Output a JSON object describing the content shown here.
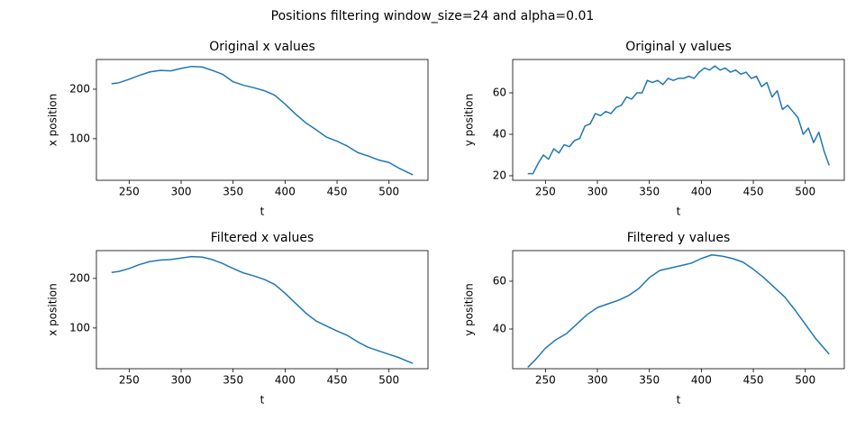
{
  "title": "Positions filtering window_size=24 and alpha=0.01",
  "chart_data": [
    {
      "type": "line",
      "title": "Original x values",
      "xlabel": "t",
      "ylabel": "x position",
      "x": [
        233,
        240,
        250,
        260,
        270,
        280,
        290,
        300,
        310,
        320,
        330,
        340,
        350,
        360,
        370,
        380,
        390,
        400,
        410,
        420,
        430,
        440,
        450,
        460,
        470,
        480,
        490,
        500,
        510,
        520,
        523
      ],
      "series": [
        {
          "color": "#1f77b4",
          "values": [
            211,
            213,
            220,
            228,
            235,
            238,
            237,
            242,
            246,
            245,
            238,
            230,
            215,
            208,
            203,
            197,
            188,
            170,
            150,
            132,
            118,
            103,
            95,
            85,
            72,
            65,
            57,
            52,
            40,
            30,
            27
          ]
        }
      ],
      "xlim": [
        218.5,
        537.5
      ],
      "ylim": [
        16,
        260
      ],
      "xticks": [
        250,
        300,
        350,
        400,
        450,
        500
      ],
      "yticks": [
        100,
        200
      ]
    },
    {
      "type": "line",
      "title": "Original y values",
      "xlabel": "t",
      "ylabel": "y position",
      "x": [
        233,
        238,
        243,
        248,
        253,
        258,
        263,
        268,
        273,
        278,
        283,
        288,
        293,
        298,
        303,
        308,
        313,
        318,
        323,
        328,
        333,
        338,
        343,
        348,
        353,
        358,
        363,
        368,
        373,
        378,
        383,
        388,
        393,
        398,
        403,
        408,
        413,
        418,
        423,
        428,
        433,
        438,
        443,
        448,
        453,
        458,
        463,
        468,
        473,
        478,
        483,
        488,
        493,
        498,
        503,
        508,
        513,
        518,
        523
      ],
      "series": [
        {
          "color": "#1f77b4",
          "values": [
            21,
            21,
            26,
            30,
            28,
            33,
            31,
            35,
            34,
            37,
            38,
            44,
            45,
            50,
            49,
            51,
            50,
            53,
            54,
            58,
            57,
            60,
            60,
            66,
            65,
            66,
            64,
            67,
            66,
            67,
            67,
            68,
            67,
            70,
            72,
            71,
            73,
            71,
            72,
            70,
            71,
            69,
            70,
            67,
            68,
            63,
            65,
            58,
            61,
            52,
            54,
            51,
            48,
            40,
            43,
            36,
            41,
            32,
            25
          ]
        }
      ],
      "xlim": [
        218.5,
        537.5
      ],
      "ylim": [
        17.8,
        76.1
      ],
      "xticks": [
        250,
        300,
        350,
        400,
        450,
        500
      ],
      "yticks": [
        20,
        40,
        60
      ]
    },
    {
      "type": "line",
      "title": "Filtered x values",
      "xlabel": "t",
      "ylabel": "x position",
      "x": [
        233,
        240,
        250,
        260,
        270,
        280,
        290,
        300,
        310,
        320,
        330,
        340,
        350,
        360,
        370,
        380,
        390,
        400,
        410,
        420,
        430,
        440,
        450,
        460,
        470,
        480,
        490,
        500,
        510,
        520,
        523
      ],
      "series": [
        {
          "color": "#1f77b4",
          "values": [
            212,
            214,
            220,
            228,
            234,
            237,
            238,
            241,
            244,
            243,
            238,
            230,
            220,
            211,
            205,
            198,
            188,
            170,
            150,
            130,
            114,
            104,
            94,
            85,
            72,
            61,
            54,
            47,
            40,
            31,
            29
          ]
        }
      ],
      "xlim": [
        218.5,
        537.5
      ],
      "ylim": [
        18,
        256
      ],
      "xticks": [
        250,
        300,
        350,
        400,
        450,
        500
      ],
      "yticks": [
        100,
        200
      ]
    },
    {
      "type": "line",
      "title": "Filtered y values",
      "xlabel": "t",
      "ylabel": "y position",
      "x": [
        233,
        240,
        250,
        260,
        270,
        280,
        290,
        300,
        310,
        320,
        330,
        340,
        350,
        360,
        370,
        380,
        390,
        400,
        410,
        420,
        430,
        440,
        450,
        460,
        470,
        480,
        490,
        500,
        510,
        520,
        523
      ],
      "series": [
        {
          "color": "#1f77b4",
          "values": [
            24,
            27,
            32,
            35.5,
            38,
            42,
            46,
            49,
            50.5,
            52,
            54,
            57,
            61.5,
            64.5,
            65.5,
            66.5,
            67.5,
            69.5,
            71,
            70.5,
            69.5,
            68,
            65,
            61.5,
            57.5,
            53.5,
            48,
            42,
            36,
            31,
            29.5
          ]
        }
      ],
      "xlim": [
        218.5,
        537.5
      ],
      "ylim": [
        23.4,
        72.8
      ],
      "xticks": [
        250,
        300,
        350,
        400,
        450,
        500
      ],
      "yticks": [
        40,
        60
      ]
    }
  ]
}
